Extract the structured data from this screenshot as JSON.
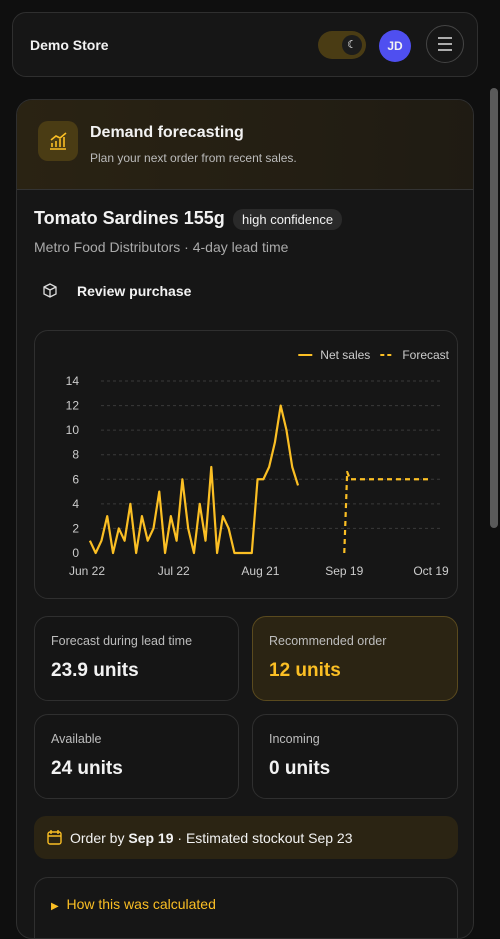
{
  "header": {
    "store": "Demo Store",
    "avatar": "JD"
  },
  "card": {
    "title": "Demand forecasting",
    "subtitle": "Plan your next order from recent sales.",
    "product": "Tomato Sardines 155g",
    "badge": "high confidence",
    "meta": "Metro Food Distributors · 4-day lead time",
    "action": "Review purchase"
  },
  "chart_data": {
    "type": "line",
    "xlim": [
      0,
      119
    ],
    "xticks": [
      {
        "value": 0,
        "label": "Jun 22"
      },
      {
        "value": 30,
        "label": "Jul 22"
      },
      {
        "value": 60,
        "label": "Aug 21"
      },
      {
        "value": 89,
        "label": "Sep 19"
      },
      {
        "value": 119,
        "label": "Oct 19"
      }
    ],
    "ylim": [
      0,
      14
    ],
    "yticks": [
      0,
      2,
      4,
      6,
      8,
      10,
      12,
      14
    ],
    "grid": true,
    "legend": "top-right",
    "series": [
      {
        "name": "Net sales",
        "color": "#fbbf24",
        "dash": false,
        "x": [
          1,
          3,
          5,
          7,
          9,
          11,
          13,
          15,
          17,
          19,
          21,
          23,
          25,
          27,
          29,
          31,
          33,
          35,
          37,
          39,
          41,
          43,
          45,
          47,
          49,
          51,
          53,
          55,
          57,
          59,
          61,
          63,
          65,
          67,
          69,
          71,
          73
        ],
        "values": [
          1,
          0,
          1,
          3,
          0,
          2,
          1,
          4,
          0,
          3,
          1,
          2,
          5,
          0,
          3,
          1,
          6,
          2,
          0,
          4,
          1,
          7,
          0,
          3,
          2,
          0,
          0,
          0,
          0,
          6,
          6,
          7,
          9,
          12,
          10,
          7,
          5.5
        ]
      },
      {
        "name": "Forecast",
        "color": "#fbbf24",
        "dash": true,
        "x": [
          89,
          90,
          91,
          95,
          100,
          105,
          110,
          115,
          119
        ],
        "values": [
          0,
          6.6,
          6,
          6,
          6,
          6,
          6,
          6,
          6
        ]
      }
    ]
  },
  "stats": [
    {
      "label": "Forecast during lead time",
      "value": "23.9 units"
    },
    {
      "label": "Recommended order",
      "value": "12 units"
    },
    {
      "label": "Available",
      "value": "24 units"
    },
    {
      "label": "Incoming",
      "value": "0 units"
    }
  ],
  "alert": {
    "prefix": "Order by",
    "date": "Sep 19",
    "suffix": "· Estimated stockout Sep 23"
  },
  "details": {
    "summary": "How this was calculated"
  }
}
